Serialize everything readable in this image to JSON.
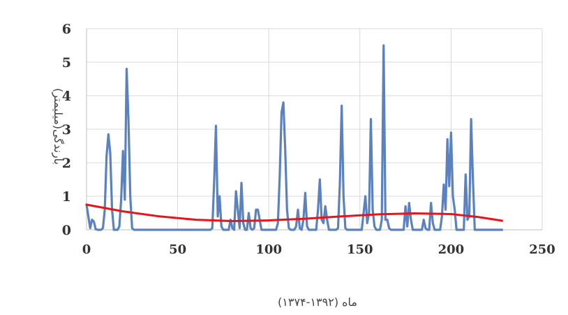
{
  "chart_data": {
    "type": "line",
    "xlabel": "ماه (۱۳۹۲-۱۳۷۴)",
    "ylabel": "بارندگی(میلیمتر)",
    "xlim": [
      0,
      250
    ],
    "ylim": [
      0,
      6
    ],
    "x_ticks": [
      0,
      50,
      100,
      150,
      200,
      250
    ],
    "y_ticks": [
      0,
      1,
      2,
      3,
      4,
      5,
      6
    ],
    "grid": true,
    "colors": {
      "series": "#5b82bf",
      "trend": "#e8141b",
      "grid": "#d9d9d9"
    },
    "series": [
      {
        "points": [
          [
            0,
            0.75
          ],
          [
            1,
            0.4
          ],
          [
            2,
            0.05
          ],
          [
            3,
            0.3
          ],
          [
            4,
            0.25
          ],
          [
            5,
            0.02
          ],
          [
            6,
            0
          ],
          [
            7,
            0
          ],
          [
            8,
            0
          ],
          [
            9,
            0.05
          ],
          [
            10,
            0.6
          ],
          [
            11,
            2.2
          ],
          [
            12,
            2.85
          ],
          [
            13,
            2.3
          ],
          [
            14,
            0.6
          ],
          [
            15,
            0
          ],
          [
            16,
            0
          ],
          [
            17,
            0
          ],
          [
            18,
            0.1
          ],
          [
            19,
            0.9
          ],
          [
            20,
            2.35
          ],
          [
            21,
            0.9
          ],
          [
            22,
            4.8
          ],
          [
            23,
            3.3
          ],
          [
            24,
            1.0
          ],
          [
            25,
            0.05
          ],
          [
            26,
            0
          ],
          [
            27,
            0
          ],
          [
            28,
            0
          ],
          [
            29,
            0
          ],
          [
            30,
            0
          ],
          [
            40,
            0
          ],
          [
            50,
            0
          ],
          [
            60,
            0
          ],
          [
            68,
            0
          ],
          [
            69,
            0.05
          ],
          [
            70,
            1.4
          ],
          [
            71,
            3.1
          ],
          [
            72,
            0.4
          ],
          [
            73,
            1.0
          ],
          [
            74,
            0.1
          ],
          [
            75,
            0
          ],
          [
            76,
            0
          ],
          [
            77,
            0
          ],
          [
            78,
            0
          ],
          [
            79,
            0.3
          ],
          [
            80,
            0.05
          ],
          [
            81,
            0
          ],
          [
            82,
            1.15
          ],
          [
            83,
            0.6
          ],
          [
            84,
            0.05
          ],
          [
            85,
            1.4
          ],
          [
            86,
            0.2
          ],
          [
            87,
            0
          ],
          [
            88,
            0
          ],
          [
            89,
            0.5
          ],
          [
            90,
            0.05
          ],
          [
            91,
            0
          ],
          [
            92,
            0.05
          ],
          [
            93,
            0.6
          ],
          [
            94,
            0.6
          ],
          [
            95,
            0.3
          ],
          [
            96,
            0
          ],
          [
            97,
            0
          ],
          [
            98,
            0
          ],
          [
            100,
            0
          ],
          [
            102,
            0
          ],
          [
            104,
            0
          ],
          [
            105,
            0.2
          ],
          [
            106,
            1.6
          ],
          [
            107,
            3.5
          ],
          [
            108,
            3.8
          ],
          [
            109,
            2.4
          ],
          [
            110,
            0.6
          ],
          [
            111,
            0.05
          ],
          [
            112,
            0
          ],
          [
            113,
            0
          ],
          [
            114,
            0
          ],
          [
            115,
            0.1
          ],
          [
            116,
            0.6
          ],
          [
            117,
            0.05
          ],
          [
            118,
            0
          ],
          [
            119,
            0.3
          ],
          [
            120,
            1.1
          ],
          [
            121,
            0.1
          ],
          [
            122,
            0
          ],
          [
            123,
            0
          ],
          [
            124,
            0
          ],
          [
            125,
            0
          ],
          [
            126,
            0
          ],
          [
            127,
            0.6
          ],
          [
            128,
            1.5
          ],
          [
            129,
            0.3
          ],
          [
            130,
            0.2
          ],
          [
            131,
            0.7
          ],
          [
            132,
            0.3
          ],
          [
            133,
            0
          ],
          [
            134,
            0
          ],
          [
            135,
            0
          ],
          [
            136,
            0
          ],
          [
            137,
            0
          ],
          [
            138,
            0.05
          ],
          [
            139,
            1.4
          ],
          [
            140,
            3.7
          ],
          [
            141,
            1.0
          ],
          [
            142,
            0.05
          ],
          [
            143,
            0
          ],
          [
            144,
            0
          ],
          [
            145,
            0
          ],
          [
            146,
            0
          ],
          [
            147,
            0
          ],
          [
            148,
            0
          ],
          [
            149,
            0
          ],
          [
            150,
            0
          ],
          [
            151,
            0
          ],
          [
            152,
            0.5
          ],
          [
            153,
            1.0
          ],
          [
            154,
            0.2
          ],
          [
            155,
            0.5
          ],
          [
            156,
            3.3
          ],
          [
            157,
            0.6
          ],
          [
            158,
            0.1
          ],
          [
            159,
            0
          ],
          [
            160,
            0
          ],
          [
            161,
            0
          ],
          [
            162,
            0.3
          ],
          [
            163,
            5.5
          ],
          [
            164,
            0.3
          ],
          [
            165,
            0.3
          ],
          [
            166,
            0.05
          ],
          [
            167,
            0
          ],
          [
            168,
            0
          ],
          [
            170,
            0
          ],
          [
            172,
            0
          ],
          [
            174,
            0
          ],
          [
            175,
            0.7
          ],
          [
            176,
            0.1
          ],
          [
            177,
            0.8
          ],
          [
            178,
            0.3
          ],
          [
            179,
            0
          ],
          [
            180,
            0
          ],
          [
            182,
            0
          ],
          [
            184,
            0
          ],
          [
            185,
            0.3
          ],
          [
            186,
            0.05
          ],
          [
            187,
            0
          ],
          [
            188,
            0
          ],
          [
            189,
            0.8
          ],
          [
            190,
            0.2
          ],
          [
            191,
            0
          ],
          [
            192,
            0
          ],
          [
            193,
            0
          ],
          [
            194,
            0
          ],
          [
            195,
            0.4
          ],
          [
            196,
            1.35
          ],
          [
            197,
            0.6
          ],
          [
            198,
            2.7
          ],
          [
            199,
            1.3
          ],
          [
            200,
            2.9
          ],
          [
            201,
            1.0
          ],
          [
            202,
            0.6
          ],
          [
            203,
            0
          ],
          [
            204,
            0
          ],
          [
            205,
            0
          ],
          [
            206,
            0
          ],
          [
            207,
            0
          ],
          [
            208,
            1.65
          ],
          [
            209,
            0.3
          ],
          [
            210,
            0.4
          ],
          [
            211,
            3.3
          ],
          [
            212,
            1.5
          ],
          [
            213,
            0
          ],
          [
            214,
            0
          ],
          [
            215,
            0
          ],
          [
            220,
            0
          ],
          [
            225,
            0
          ],
          [
            228,
            0
          ]
        ]
      },
      {
        "points": [
          [
            0,
            0.75
          ],
          [
            20,
            0.55
          ],
          [
            40,
            0.4
          ],
          [
            60,
            0.3
          ],
          [
            80,
            0.26
          ],
          [
            100,
            0.28
          ],
          [
            120,
            0.33
          ],
          [
            140,
            0.4
          ],
          [
            160,
            0.46
          ],
          [
            180,
            0.49
          ],
          [
            200,
            0.47
          ],
          [
            215,
            0.38
          ],
          [
            228,
            0.27
          ]
        ]
      }
    ]
  }
}
